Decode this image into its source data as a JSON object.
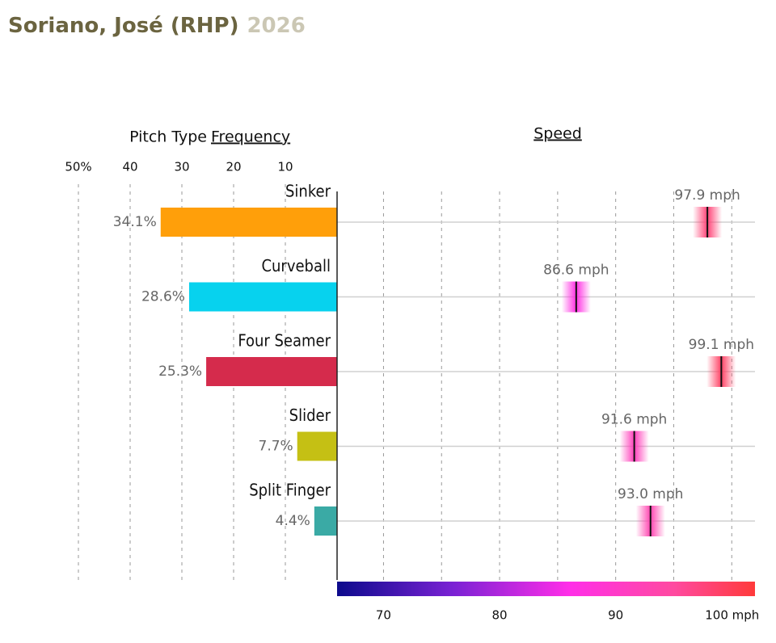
{
  "header": {
    "title": "Soriano, José (RHP)",
    "season": "2026"
  },
  "chart_data": [
    {
      "type": "bar",
      "orientation": "horizontal-reversed",
      "label": "Pitch Type",
      "title": "Frequency",
      "categories": [
        "Sinker",
        "Curveball",
        "Four Seamer",
        "Slider",
        "Split Finger"
      ],
      "values": [
        34.1,
        28.6,
        25.3,
        7.7,
        4.4
      ],
      "value_labels": [
        "34.1%",
        "28.6%",
        "25.3%",
        "7.7%",
        "4.4%"
      ],
      "colors": [
        "#ff9f0a",
        "#07d2ee",
        "#d52b4c",
        "#c5c014",
        "#3aaaa5"
      ],
      "xlim": [
        0,
        50
      ],
      "xticks": [
        {
          "value": 50,
          "label": "50%"
        },
        40,
        30,
        20,
        10
      ],
      "grid": true
    },
    {
      "type": "speed-strip",
      "title": "Speed",
      "values": [
        97.9,
        86.6,
        99.1,
        91.6,
        93.0
      ],
      "value_labels": [
        "97.9 mph",
        "86.6 mph",
        "99.1 mph",
        "91.6 mph",
        "93.0 mph"
      ],
      "xlim": [
        66,
        102
      ],
      "xticks": [
        70,
        80,
        90,
        {
          "value": 100,
          "label": "100 mph"
        }
      ],
      "gridlines": [
        70,
        75,
        80,
        85,
        90,
        95,
        100
      ],
      "colorscale": [
        [
          66,
          "#0c0a8c"
        ],
        [
          76,
          "#7a22d4"
        ],
        [
          86,
          "#ff2ee8"
        ],
        [
          95,
          "#ff4aa0"
        ],
        [
          102,
          "#ff3a3a"
        ]
      ]
    }
  ]
}
